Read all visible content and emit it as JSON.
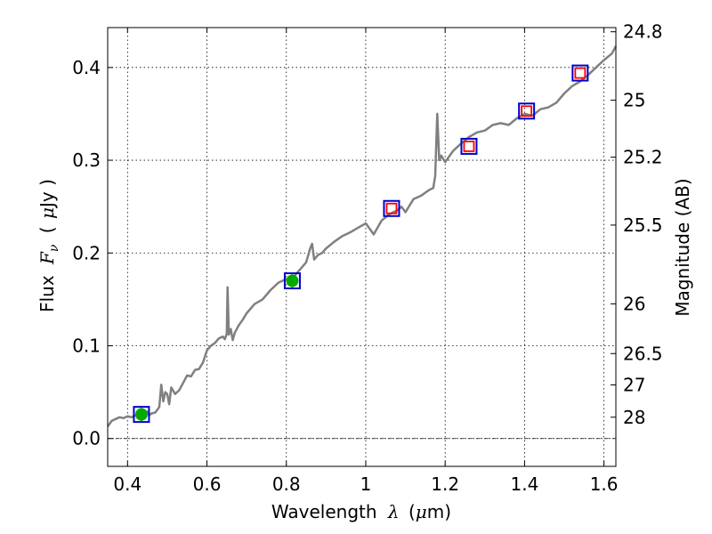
{
  "chart_data": {
    "type": "line",
    "xlabel_text": "Wavelength",
    "xlabel_symbol": "λ",
    "xlabel_unit_open": "(",
    "xlabel_unit_mu": "μ",
    "xlabel_unit_rest": "m)",
    "ylabel_text": "Flux",
    "ylabel_symbol": "F",
    "ylabel_symbol_sub": "ν",
    "ylabel_unit_open": "(",
    "ylabel_unit_mu": "μ",
    "ylabel_unit_rest": "Jy )",
    "y2label": "Magnitude (AB)",
    "xlim": [
      0.35,
      1.63
    ],
    "ylim": [
      -0.03,
      0.443
    ],
    "grid": true,
    "x_ticks": [
      0.4,
      0.6,
      0.8,
      1.0,
      1.2,
      1.4,
      1.6
    ],
    "x_tick_labels": [
      "0.4",
      "0.6",
      "0.8",
      "1",
      "1.2",
      "1.4",
      "1.6"
    ],
    "y_ticks": [
      0.0,
      0.1,
      0.2,
      0.3,
      0.4
    ],
    "y_tick_labels": [
      "0.0",
      "0.1",
      "0.2",
      "0.3",
      "0.4"
    ],
    "y2_ticks": [
      {
        "label": "24.8",
        "flux": 0.4385
      },
      {
        "label": "25",
        "flux": 0.3647
      },
      {
        "label": "25.2",
        "flux": 0.3033
      },
      {
        "label": "25.5",
        "flux": 0.2301
      },
      {
        "label": "26",
        "flux": 0.1452
      },
      {
        "label": "26.5",
        "flux": 0.0916
      },
      {
        "label": "27",
        "flux": 0.0578
      },
      {
        "label": "28",
        "flux": 0.023
      }
    ],
    "series": [
      {
        "kind": "spectrum",
        "color": "#808080",
        "x": [
          0.35,
          0.36,
          0.37,
          0.38,
          0.39,
          0.4,
          0.41,
          0.42,
          0.43,
          0.44,
          0.45,
          0.455,
          0.46,
          0.47,
          0.48,
          0.485,
          0.49,
          0.495,
          0.5,
          0.505,
          0.51,
          0.52,
          0.53,
          0.54,
          0.55,
          0.56,
          0.57,
          0.58,
          0.59,
          0.6,
          0.61,
          0.62,
          0.63,
          0.64,
          0.645,
          0.65,
          0.652,
          0.655,
          0.66,
          0.665,
          0.67,
          0.68,
          0.69,
          0.7,
          0.72,
          0.74,
          0.76,
          0.78,
          0.8,
          0.81,
          0.82,
          0.83,
          0.84,
          0.85,
          0.86,
          0.865,
          0.87,
          0.88,
          0.89,
          0.9,
          0.92,
          0.94,
          0.96,
          0.98,
          1.0,
          1.02,
          1.04,
          1.06,
          1.08,
          1.09,
          1.1,
          1.12,
          1.14,
          1.16,
          1.17,
          1.175,
          1.18,
          1.185,
          1.19,
          1.2,
          1.22,
          1.24,
          1.26,
          1.28,
          1.3,
          1.32,
          1.34,
          1.36,
          1.38,
          1.4,
          1.42,
          1.44,
          1.46,
          1.48,
          1.5,
          1.52,
          1.54,
          1.56,
          1.58,
          1.6,
          1.62,
          1.63
        ],
        "y": [
          0.013,
          0.019,
          0.021,
          0.023,
          0.022,
          0.024,
          0.023,
          0.025,
          0.026,
          0.028,
          0.029,
          0.025,
          0.027,
          0.028,
          0.034,
          0.058,
          0.04,
          0.05,
          0.048,
          0.037,
          0.055,
          0.048,
          0.052,
          0.06,
          0.068,
          0.067,
          0.074,
          0.075,
          0.082,
          0.095,
          0.1,
          0.103,
          0.108,
          0.11,
          0.107,
          0.113,
          0.163,
          0.112,
          0.118,
          0.106,
          0.114,
          0.122,
          0.128,
          0.135,
          0.145,
          0.15,
          0.16,
          0.168,
          0.172,
          0.168,
          0.175,
          0.18,
          0.185,
          0.19,
          0.205,
          0.21,
          0.193,
          0.198,
          0.2,
          0.205,
          0.212,
          0.218,
          0.222,
          0.227,
          0.232,
          0.22,
          0.235,
          0.242,
          0.246,
          0.25,
          0.244,
          0.258,
          0.262,
          0.268,
          0.27,
          0.283,
          0.35,
          0.3,
          0.305,
          0.298,
          0.31,
          0.318,
          0.325,
          0.33,
          0.332,
          0.338,
          0.34,
          0.338,
          0.345,
          0.35,
          0.348,
          0.355,
          0.357,
          0.362,
          0.372,
          0.38,
          0.385,
          0.392,
          0.4,
          0.408,
          0.415,
          0.423
        ]
      },
      {
        "kind": "filled-circle",
        "color": "#00aa00",
        "x": [
          0.435,
          0.815
        ],
        "y": [
          0.026,
          0.17
        ],
        "yerr": [
          0.007,
          0.007
        ]
      },
      {
        "kind": "open-square-blue",
        "color": "#0000cc",
        "x": [
          0.435,
          0.815,
          1.065,
          1.26,
          1.405,
          1.54
        ],
        "y": [
          0.026,
          0.17,
          0.248,
          0.315,
          0.353,
          0.394
        ]
      },
      {
        "kind": "open-square-red",
        "color": "#ff0000",
        "x": [
          1.065,
          1.26,
          1.405,
          1.54
        ],
        "y": [
          0.248,
          0.315,
          0.353,
          0.394
        ]
      }
    ]
  }
}
